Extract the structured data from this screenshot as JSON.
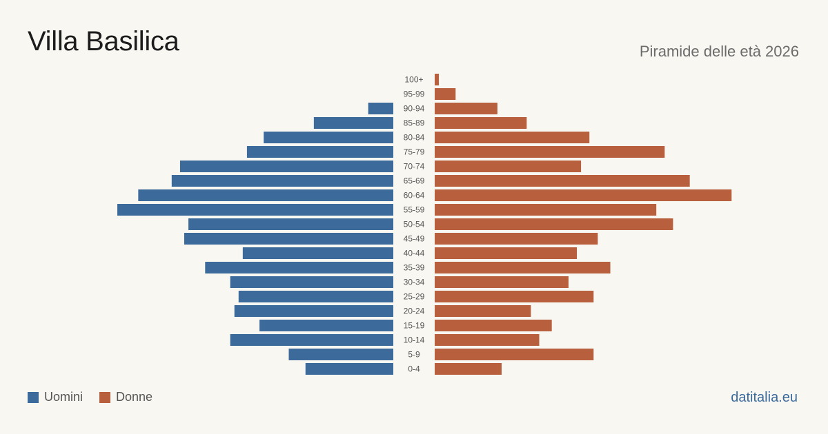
{
  "header": {
    "title": "Villa Basilica",
    "subtitle": "Piramide delle età 2026"
  },
  "legend": {
    "men_label": "Uomini",
    "women_label": "Donne"
  },
  "footer": {
    "source": "datitalia.eu"
  },
  "colors": {
    "men": "#3b6a9b",
    "women": "#b85f3d",
    "background": "#f9f7f2",
    "tick_text": "#555555"
  },
  "chart_data": {
    "type": "bar",
    "orientation": "horizontal-pyramid",
    "categories": [
      "100+",
      "95-99",
      "90-94",
      "85-89",
      "80-84",
      "75-79",
      "70-74",
      "65-69",
      "60-64",
      "55-59",
      "50-54",
      "45-49",
      "40-44",
      "35-39",
      "30-34",
      "25-29",
      "20-24",
      "15-19",
      "10-14",
      "5-9",
      "0-4"
    ],
    "series": [
      {
        "name": "Uomini",
        "side": "left",
        "values": [
          0,
          0,
          6,
          19,
          31,
          35,
          51,
          53,
          61,
          66,
          49,
          50,
          36,
          45,
          39,
          37,
          38,
          32,
          39,
          25,
          21
        ]
      },
      {
        "name": "Donne",
        "side": "right",
        "values": [
          1,
          5,
          15,
          22,
          37,
          55,
          35,
          61,
          71,
          53,
          57,
          39,
          34,
          42,
          32,
          38,
          23,
          28,
          25,
          38,
          16
        ]
      }
    ],
    "grid": false,
    "legend_position": "bottom-left"
  }
}
